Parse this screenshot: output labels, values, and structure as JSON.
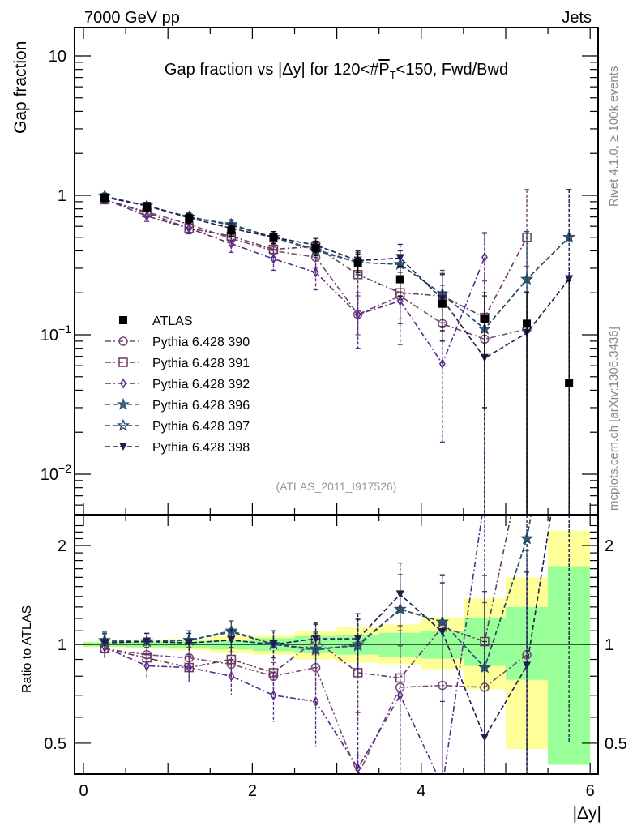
{
  "header": {
    "left": "7000 GeV pp",
    "right": "Jets"
  },
  "side_text": {
    "rivet": "Rivet 4.1.0, ≥ 100k events",
    "mcplots": "mcplots.cern.ch [arXiv:1306.3436]"
  },
  "chart_data": [
    {
      "type": "scatter",
      "panel": "main",
      "title": "Gap fraction vs |Δy| for 120<#P̅T<150, Fwd/Bwd",
      "title_parts": {
        "prefix": "Gap fraction vs |Δy| for 120<#",
        "p": "P",
        "sub": "T",
        "suffix": "<150, Fwd/Bwd"
      },
      "xlabel": "|Δy|",
      "ylabel": "Gap fraction",
      "yscale": "log",
      "ylim": [
        0.005,
        15
      ],
      "xlim": [
        -0.05,
        6.1
      ],
      "yticks": [
        {
          "value": 10,
          "label": "10"
        },
        {
          "value": 1,
          "label": "1"
        },
        {
          "value": 0.1,
          "label": "10",
          "exp": "−1"
        },
        {
          "value": 0.01,
          "label": "10",
          "exp": "−2"
        }
      ],
      "annotation": "(ATLAS_2011_I917526)",
      "legend_position": "center-left",
      "x": [
        0.25,
        0.75,
        1.25,
        1.75,
        2.25,
        2.75,
        3.25,
        3.75,
        4.25,
        4.75,
        5.25,
        5.75
      ],
      "series": [
        {
          "name": "ATLAS",
          "marker": "filled-square",
          "color": "#000000",
          "line": "none",
          "values": [
            0.96,
            0.82,
            0.68,
            0.56,
            0.5,
            0.42,
            0.33,
            0.25,
            0.167,
            0.13,
            0.12,
            0.045
          ],
          "err_up": [
            0.06,
            0.05,
            0.05,
            0.05,
            0.05,
            0.05,
            0.05,
            0.06,
            0.06,
            0.07,
            0.08,
            0.2
          ],
          "err_down": [
            0.06,
            0.05,
            0.05,
            0.05,
            0.05,
            0.05,
            0.05,
            0.06,
            0.06,
            0.1,
            0.12,
            0.045
          ]
        },
        {
          "name": "Pythia 6.428 390",
          "marker": "open-circle",
          "color": "#7a4a72",
          "line": "dashdot",
          "values": [
            0.93,
            0.76,
            0.62,
            0.49,
            0.4,
            0.36,
            0.14,
            0.19,
            0.12,
            0.093,
            0.11,
            null
          ],
          "err_up": [
            0.05,
            0.05,
            0.05,
            0.05,
            0.05,
            0.06,
            0.05,
            0.07,
            0.08,
            0.15,
            0.2,
            null
          ],
          "err_down": [
            0.05,
            0.05,
            0.05,
            0.05,
            0.05,
            0.06,
            0.04,
            0.06,
            0.06,
            0.09,
            0.11,
            null
          ]
        },
        {
          "name": "Pythia 6.428 391",
          "marker": "open-square",
          "color": "#6a3a5a",
          "line": "dashdot",
          "values": [
            0.93,
            0.75,
            0.58,
            0.51,
            0.41,
            0.43,
            0.27,
            0.2,
            0.19,
            0.133,
            0.5,
            null
          ],
          "err_up": [
            0.05,
            0.05,
            0.05,
            0.05,
            0.05,
            0.06,
            0.07,
            0.08,
            0.1,
            0.4,
            0.6,
            null
          ],
          "err_down": [
            0.05,
            0.05,
            0.05,
            0.05,
            0.05,
            0.06,
            0.07,
            0.08,
            0.1,
            0.13,
            0.5,
            null
          ]
        },
        {
          "name": "Pythia 6.428 392",
          "marker": "open-diamond",
          "color": "#5a2a8a",
          "line": "dashdot",
          "values": [
            0.94,
            0.71,
            0.58,
            0.45,
            0.35,
            0.28,
            0.14,
            0.175,
            0.062,
            0.36,
            null,
            null
          ],
          "err_up": [
            0.05,
            0.06,
            0.05,
            0.06,
            0.06,
            0.07,
            0.06,
            0.09,
            0.06,
            0.18,
            null,
            null
          ],
          "err_down": [
            0.05,
            0.06,
            0.05,
            0.06,
            0.06,
            0.07,
            0.06,
            0.09,
            0.045,
            0.36,
            null,
            null
          ]
        },
        {
          "name": "Pythia 6.428 396",
          "marker": "filled-star",
          "color": "#3a6278",
          "line": "dashed",
          "values": [
            0.99,
            0.84,
            0.7,
            0.62,
            0.5,
            0.4,
            0.33,
            0.32,
            0.195,
            0.11,
            0.25,
            0.5
          ],
          "err_up": [
            0.05,
            0.05,
            0.05,
            0.05,
            0.05,
            0.05,
            0.06,
            0.08,
            0.08,
            0.08,
            0.3,
            0.6
          ],
          "err_down": [
            0.05,
            0.05,
            0.05,
            0.05,
            0.05,
            0.05,
            0.06,
            0.08,
            0.08,
            0.11,
            0.25,
            0.5
          ]
        },
        {
          "name": "Pythia 6.428 397",
          "marker": "open-star",
          "color": "#2a4a6a",
          "line": "dashed",
          "values": [
            0.98,
            0.84,
            0.7,
            0.61,
            0.5,
            0.41,
            0.33,
            0.32,
            0.195,
            0.11,
            0.25,
            0.5
          ],
          "err_up": [
            0.05,
            0.05,
            0.05,
            0.05,
            0.05,
            0.05,
            0.06,
            0.08,
            0.08,
            0.08,
            0.3,
            0.6
          ],
          "err_down": [
            0.05,
            0.05,
            0.05,
            0.05,
            0.05,
            0.05,
            0.06,
            0.08,
            0.08,
            0.11,
            0.25,
            0.5
          ]
        },
        {
          "name": "Pythia 6.428 398",
          "marker": "filled-triangle-down",
          "color": "#1e1e50",
          "line": "dashed",
          "values": [
            0.97,
            0.84,
            0.69,
            0.58,
            0.5,
            0.44,
            0.34,
            0.355,
            0.18,
            0.068,
            0.103,
            0.25
          ],
          "err_up": [
            0.05,
            0.05,
            0.05,
            0.05,
            0.05,
            0.05,
            0.06,
            0.09,
            0.09,
            0.06,
            0.1,
            0.85
          ],
          "err_down": [
            0.05,
            0.05,
            0.05,
            0.05,
            0.05,
            0.05,
            0.06,
            0.09,
            0.09,
            0.068,
            0.103,
            0.25
          ]
        }
      ]
    },
    {
      "type": "scatter",
      "panel": "ratio",
      "ylabel": "Ratio to ATLAS",
      "xlabel": "|Δy|",
      "yscale": "log",
      "ylim": [
        0.43,
        2.35
      ],
      "xlim": [
        -0.05,
        6.1
      ],
      "yticks": [
        {
          "value": 2,
          "label": "2"
        },
        {
          "value": 1,
          "label": "1"
        },
        {
          "value": 0.5,
          "label": "0.5"
        }
      ],
      "xticks": [
        {
          "value": 0,
          "label": "0"
        },
        {
          "value": 2,
          "label": "2"
        },
        {
          "value": 4,
          "label": "4"
        },
        {
          "value": 6,
          "label": "6"
        }
      ],
      "bands": {
        "bin_edges": [
          0,
          0.5,
          1.0,
          1.5,
          2.0,
          2.5,
          3.0,
          3.5,
          4.0,
          4.5,
          5.0,
          5.5,
          6.0
        ],
        "stat_color": "#99ff99",
        "total_color": "#ffff99",
        "stat_lo": [
          0.985,
          0.98,
          0.975,
          0.965,
          0.955,
          0.94,
          0.93,
          0.915,
          0.905,
          0.86,
          0.78,
          0.43
        ],
        "stat_hi": [
          1.015,
          1.02,
          1.025,
          1.035,
          1.045,
          1.06,
          1.07,
          1.085,
          1.095,
          1.2,
          1.3,
          1.73
        ],
        "total_lo": [
          0.98,
          0.97,
          0.96,
          0.94,
          0.93,
          0.9,
          0.88,
          0.87,
          0.84,
          0.73,
          0.48,
          0.43
        ],
        "total_hi": [
          1.02,
          1.03,
          1.04,
          1.06,
          1.07,
          1.1,
          1.13,
          1.15,
          1.21,
          1.38,
          1.6,
          2.22
        ]
      },
      "x": [
        0.25,
        0.75,
        1.25,
        1.75,
        2.25,
        2.75,
        3.25,
        3.75,
        4.25,
        4.75,
        5.25,
        5.75
      ],
      "series": [
        {
          "name": "Pythia 6.428 390",
          "values": [
            0.97,
            0.93,
            0.91,
            0.87,
            0.8,
            0.85,
            0.4,
            0.74,
            0.75,
            0.74,
            0.93,
            null
          ],
          "err": [
            0.06,
            0.07,
            0.07,
            0.08,
            0.08,
            0.12,
            0.06,
            0.25,
            0.35,
            0.6,
            1.0,
            null
          ]
        },
        {
          "name": "Pythia 6.428 391",
          "values": [
            0.97,
            0.91,
            0.85,
            0.9,
            0.82,
            1.03,
            0.82,
            0.79,
            1.13,
            1.02,
            4.2,
            null
          ],
          "err": [
            0.06,
            0.07,
            0.07,
            0.08,
            0.09,
            0.12,
            0.2,
            0.35,
            0.5,
            0.6,
            4.0,
            null
          ]
        },
        {
          "name": "Pythia 6.428 392",
          "values": [
            0.98,
            0.86,
            0.85,
            0.8,
            0.7,
            0.67,
            0.42,
            0.7,
            0.37,
            2.8,
            null,
            null
          ],
          "err": [
            0.06,
            0.07,
            0.08,
            0.1,
            0.12,
            0.18,
            0.2,
            0.4,
            0.3,
            2.5,
            null,
            null
          ]
        },
        {
          "name": "Pythia 6.428 396",
          "values": [
            1.03,
            1.02,
            1.03,
            1.1,
            1.0,
            0.96,
            1.0,
            1.28,
            1.17,
            0.85,
            2.1,
            11
          ],
          "err": [
            0.06,
            0.06,
            0.07,
            0.08,
            0.1,
            0.12,
            0.2,
            0.35,
            0.45,
            0.6,
            2.0,
            10
          ]
        },
        {
          "name": "Pythia 6.428 397",
          "values": [
            1.02,
            1.02,
            1.03,
            1.09,
            1.0,
            0.97,
            0.99,
            1.28,
            1.17,
            0.85,
            2.1,
            11
          ],
          "err": [
            0.06,
            0.06,
            0.07,
            0.08,
            0.1,
            0.12,
            0.2,
            0.35,
            0.45,
            0.6,
            2.0,
            10
          ]
        },
        {
          "name": "Pythia 6.428 398",
          "values": [
            1.01,
            1.02,
            1.01,
            1.03,
            1.0,
            1.04,
            1.04,
            1.42,
            1.09,
            0.52,
            0.86,
            5.5
          ],
          "err": [
            0.06,
            0.06,
            0.07,
            0.08,
            0.1,
            0.12,
            0.2,
            0.35,
            0.45,
            0.5,
            0.8,
            5.0
          ]
        }
      ]
    }
  ]
}
